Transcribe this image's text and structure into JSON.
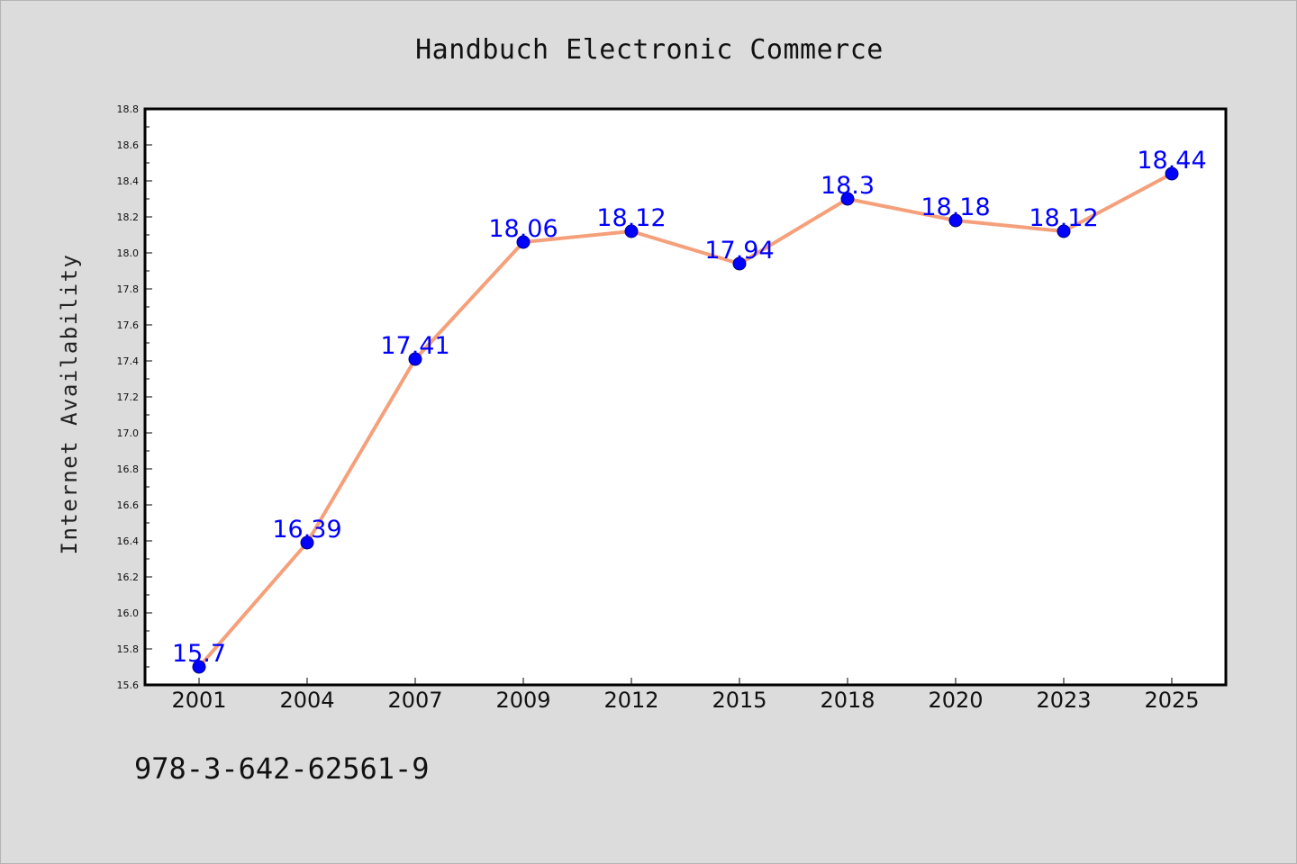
{
  "chart_data": {
    "type": "line",
    "title": "Handbuch Electronic Commerce",
    "xlabel": "",
    "ylabel": "Internet Availability",
    "categories": [
      "2001",
      "2004",
      "2007",
      "2009",
      "2012",
      "2015",
      "2018",
      "2020",
      "2023",
      "2025"
    ],
    "series": [
      {
        "values": [
          15.7,
          16.39,
          17.41,
          18.06,
          18.12,
          17.94,
          18.3,
          18.18,
          18.12,
          18.44
        ],
        "labels": [
          "15.7",
          "16.39",
          "17.41",
          "18.06",
          "18.12",
          "17.94",
          "18.3",
          "18.18",
          "18.12",
          "18.44"
        ]
      }
    ],
    "ylim": [
      15.6,
      18.8
    ],
    "yticks": [
      "15.6",
      "15.8",
      "16.0",
      "16.2",
      "16.4",
      "16.6",
      "16.8",
      "17.0",
      "17.2",
      "17.4",
      "17.6",
      "17.8",
      "18.0",
      "18.2",
      "18.4",
      "18.6",
      "18.8"
    ],
    "grid": false,
    "legend": "none",
    "colors": {
      "line": "#f5a07a",
      "marker": "#0000ff",
      "data_label": "#0000ff",
      "background": "#dcdcdc",
      "plot_area": "#ffffff"
    }
  },
  "footer_text": "978-3-642-62561-9"
}
